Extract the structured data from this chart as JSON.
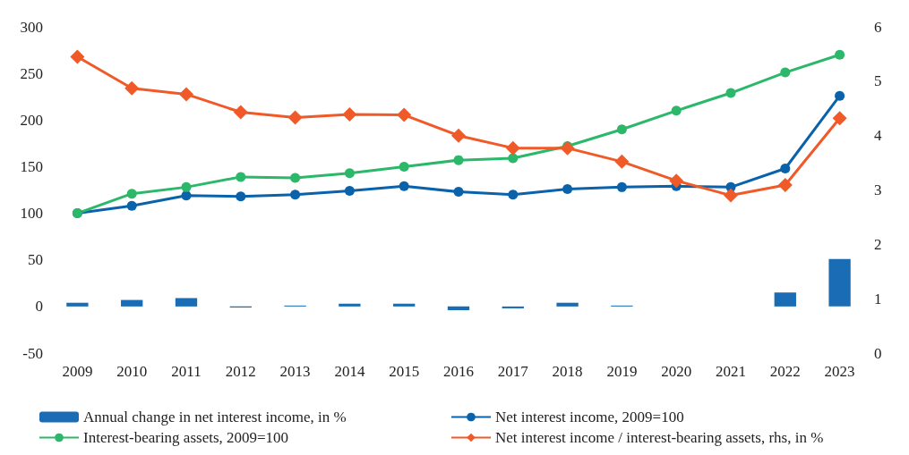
{
  "chart_data": {
    "type": "bar",
    "categories": [
      "2009",
      "2010",
      "2011",
      "2012",
      "2013",
      "2014",
      "2015",
      "2016",
      "2017",
      "2018",
      "2019",
      "2020",
      "2021",
      "2022",
      "2023"
    ],
    "series": [
      {
        "name": "Annual change in net interest income, in %",
        "color": "#1a6cb4",
        "values": [
          4,
          7,
          9,
          -1,
          1,
          3,
          3,
          -4,
          -2,
          4,
          1,
          0,
          0,
          15,
          51
        ]
      },
      {
        "name": "Net interest income, 2009=100",
        "type": "line",
        "marker": "circle",
        "color": "#0a62ab",
        "values": [
          100,
          108,
          119,
          118,
          120,
          124,
          129,
          123,
          120,
          126,
          128,
          129,
          128,
          148,
          226
        ]
      },
      {
        "name": "Interest-bearing assets, 2009=100",
        "type": "line",
        "marker": "circle",
        "color": "#2cb86a",
        "values": [
          100,
          121,
          128,
          139,
          138,
          143,
          150,
          157,
          159,
          172,
          190,
          210,
          229,
          251,
          270
        ]
      },
      {
        "name": "Net interest income / interest-bearing assets, rhs, in %",
        "type": "line",
        "marker": "diamond",
        "axis": "y2",
        "color": "#f05a28",
        "values": [
          5.45,
          4.87,
          4.76,
          4.43,
          4.33,
          4.39,
          4.38,
          4.0,
          3.77,
          3.77,
          3.52,
          3.17,
          2.9,
          3.09,
          4.32
        ]
      }
    ],
    "ylim": [
      -50,
      300
    ],
    "yticks": [
      -50,
      0,
      50,
      100,
      150,
      200,
      250,
      300
    ],
    "y2lim": [
      0,
      6
    ],
    "y2ticks": [
      0,
      1,
      2,
      3,
      4,
      5,
      6
    ],
    "grid": false,
    "legend": "bottom"
  }
}
